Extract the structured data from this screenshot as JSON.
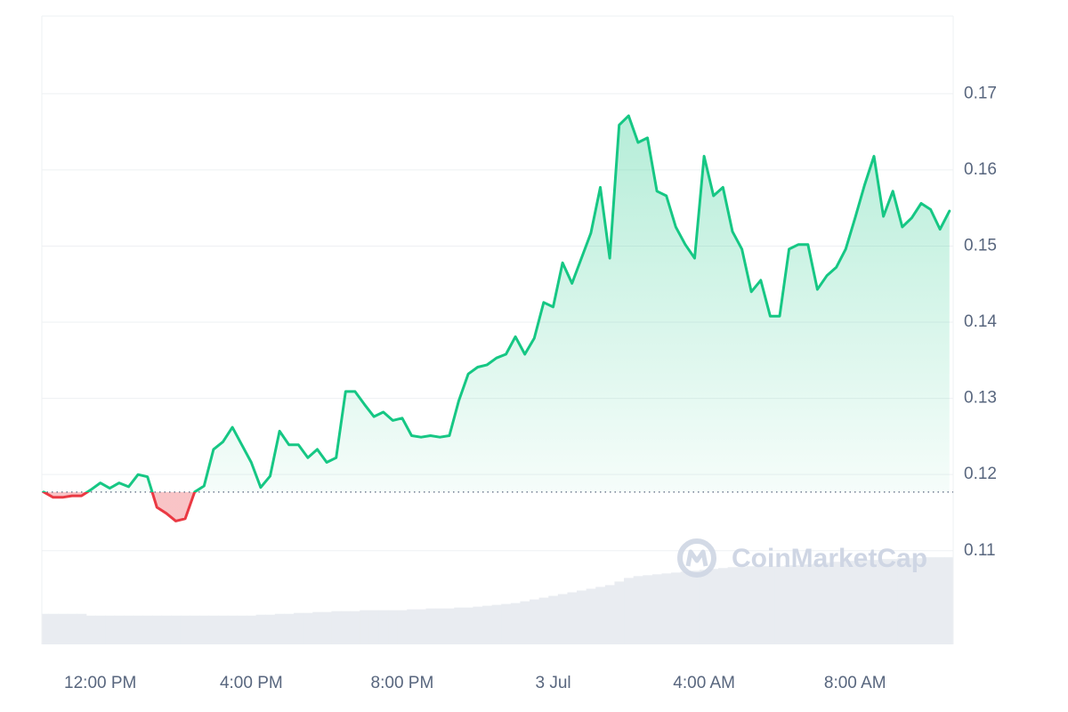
{
  "chart_data": {
    "type": "line",
    "x": [
      -1.5,
      -1.25,
      -1,
      -0.75,
      -0.5,
      -0.25,
      0,
      0.25,
      0.5,
      0.75,
      1,
      1.25,
      1.5,
      1.75,
      2,
      2.25,
      2.5,
      2.75,
      3,
      3.25,
      3.5,
      3.75,
      4,
      4.25,
      4.5,
      4.75,
      5,
      5.25,
      5.5,
      5.75,
      6,
      6.25,
      6.5,
      6.75,
      7,
      7.25,
      7.5,
      7.75,
      8,
      8.25,
      8.5,
      8.75,
      9,
      9.25,
      9.5,
      9.75,
      10,
      10.25,
      10.5,
      10.75,
      11,
      11.25,
      11.5,
      11.75,
      12,
      12.25,
      12.5,
      12.75,
      13,
      13.25,
      13.5,
      13.75,
      14,
      14.25,
      14.5,
      14.75,
      15,
      15.25,
      15.5,
      15.75,
      16,
      16.25,
      16.5,
      16.75,
      17,
      17.25,
      17.5,
      17.75,
      18,
      18.25,
      18.5,
      18.75,
      19,
      19.25,
      19.5,
      19.75,
      20,
      20.25,
      20.5,
      20.75,
      21,
      21.25,
      21.5,
      21.75,
      22,
      22.25,
      22.5
    ],
    "values": [
      0.1177,
      0.117,
      0.117,
      0.1172,
      0.1172,
      0.118,
      0.1189,
      0.1182,
      0.1189,
      0.1184,
      0.12,
      0.1197,
      0.1157,
      0.1149,
      0.1139,
      0.1142,
      0.1177,
      0.1185,
      0.1233,
      0.1243,
      0.1262,
      0.1239,
      0.1216,
      0.1183,
      0.1198,
      0.1257,
      0.1239,
      0.1239,
      0.1222,
      0.1233,
      0.1216,
      0.1222,
      0.1309,
      0.1309,
      0.1292,
      0.1276,
      0.1282,
      0.1271,
      0.1274,
      0.1251,
      0.1249,
      0.1251,
      0.1249,
      0.1251,
      0.1297,
      0.1332,
      0.1341,
      0.1344,
      0.1353,
      0.1358,
      0.1381,
      0.1358,
      0.1379,
      0.1426,
      0.142,
      0.1478,
      0.1451,
      0.1484,
      0.1517,
      0.1577,
      0.1484,
      0.1659,
      0.1671,
      0.1636,
      0.1642,
      0.1572,
      0.1566,
      0.1525,
      0.1502,
      0.1484,
      0.1618,
      0.1566,
      0.1577,
      0.1519,
      0.1496,
      0.144,
      0.1455,
      0.1408,
      0.1408,
      0.1496,
      0.1502,
      0.1502,
      0.1443,
      0.1461,
      0.1472,
      0.1496,
      0.1537,
      0.158,
      0.1618,
      0.1539,
      0.1572,
      0.1525,
      0.1537,
      0.1556,
      0.1548,
      0.1522,
      0.1546
    ],
    "volume": [
      34,
      34,
      34,
      34,
      34,
      32,
      32,
      32,
      32,
      32,
      32,
      32,
      32,
      32,
      32,
      32,
      32,
      32,
      32,
      32,
      32,
      32,
      32,
      33,
      33,
      34,
      34,
      35,
      35,
      36,
      36,
      37,
      37,
      37,
      38,
      38,
      38,
      38,
      38,
      39,
      39,
      40,
      40,
      40,
      41,
      41,
      42,
      43,
      44,
      45,
      46,
      48,
      50,
      52,
      54,
      56,
      58,
      60,
      62,
      64,
      66,
      70,
      74,
      76,
      77,
      78,
      79,
      80,
      81,
      82,
      83,
      84,
      85,
      86,
      86,
      87,
      87,
      87,
      87,
      88,
      88,
      89,
      90,
      91,
      92,
      93,
      93,
      94,
      94,
      95,
      95,
      96,
      96,
      96,
      97,
      97,
      97
    ],
    "volume_lim": [
      0,
      700
    ],
    "volume_color": "#e9ecf1",
    "color": "#16c784",
    "down_color": "#ea3943",
    "baseline": 0.1177,
    "xlim": [
      -1.55,
      22.6
    ],
    "xticks": [
      {
        "value": 0,
        "label": "12:00 PM"
      },
      {
        "value": 4,
        "label": "4:00 PM"
      },
      {
        "value": 8,
        "label": "8:00 PM"
      },
      {
        "value": 12,
        "label": "3 Jul"
      },
      {
        "value": 16,
        "label": "4:00 AM"
      },
      {
        "value": 20,
        "label": "8:00 AM"
      }
    ],
    "ylim": [
      0.0977,
      0.1802
    ],
    "yticks": [
      0.11,
      0.12,
      0.13,
      0.14,
      0.15,
      0.16,
      0.17
    ],
    "grid": true,
    "watermark": "CoinMarketCap"
  }
}
